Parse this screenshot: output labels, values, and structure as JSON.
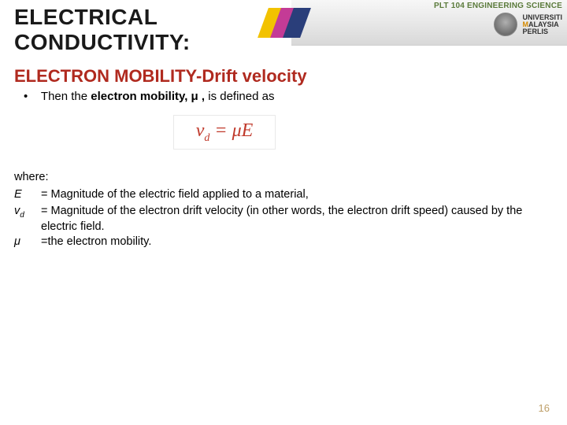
{
  "header": {
    "course_code": "PLT 104 ENGINEERING SCIENCE",
    "university": {
      "line1": "UNIVERSITI",
      "line2a": "M",
      "line2b": "ALAYSIA",
      "line3": "PERLIS"
    }
  },
  "title": {
    "line1": "ELECTRICAL",
    "line2": "CONDUCTIVITY:"
  },
  "subtitle": "ELECTRON MOBILITY-Drift velocity",
  "bullet": {
    "pre": "Then the ",
    "bold": "electron mobility, μ ,",
    "post": " is defined as"
  },
  "equation": {
    "lhs_v": "v",
    "lhs_sub": "d",
    "eq": " = ",
    "mu": "μ",
    "E": "E"
  },
  "where": {
    "label": "where:",
    "rows": [
      {
        "sym": "E",
        "sub": "",
        "txt": "= Magnitude of the electric field applied to a material,"
      },
      {
        "sym": "v",
        "sub": "d",
        "txt": "= Magnitude of the electron drift velocity (in other words, the electron drift speed) caused by the electric field."
      },
      {
        "sym": "μ",
        "sub": "",
        "txt": "=the electron mobility."
      }
    ]
  },
  "page_number": "16",
  "colors": {
    "subtitle": "#b02a1f",
    "equation": "#c0392b",
    "pagenum": "#bfa06a",
    "chev1": "#f2c200",
    "chev2": "#c43b96",
    "chev3": "#2a3e7a"
  }
}
